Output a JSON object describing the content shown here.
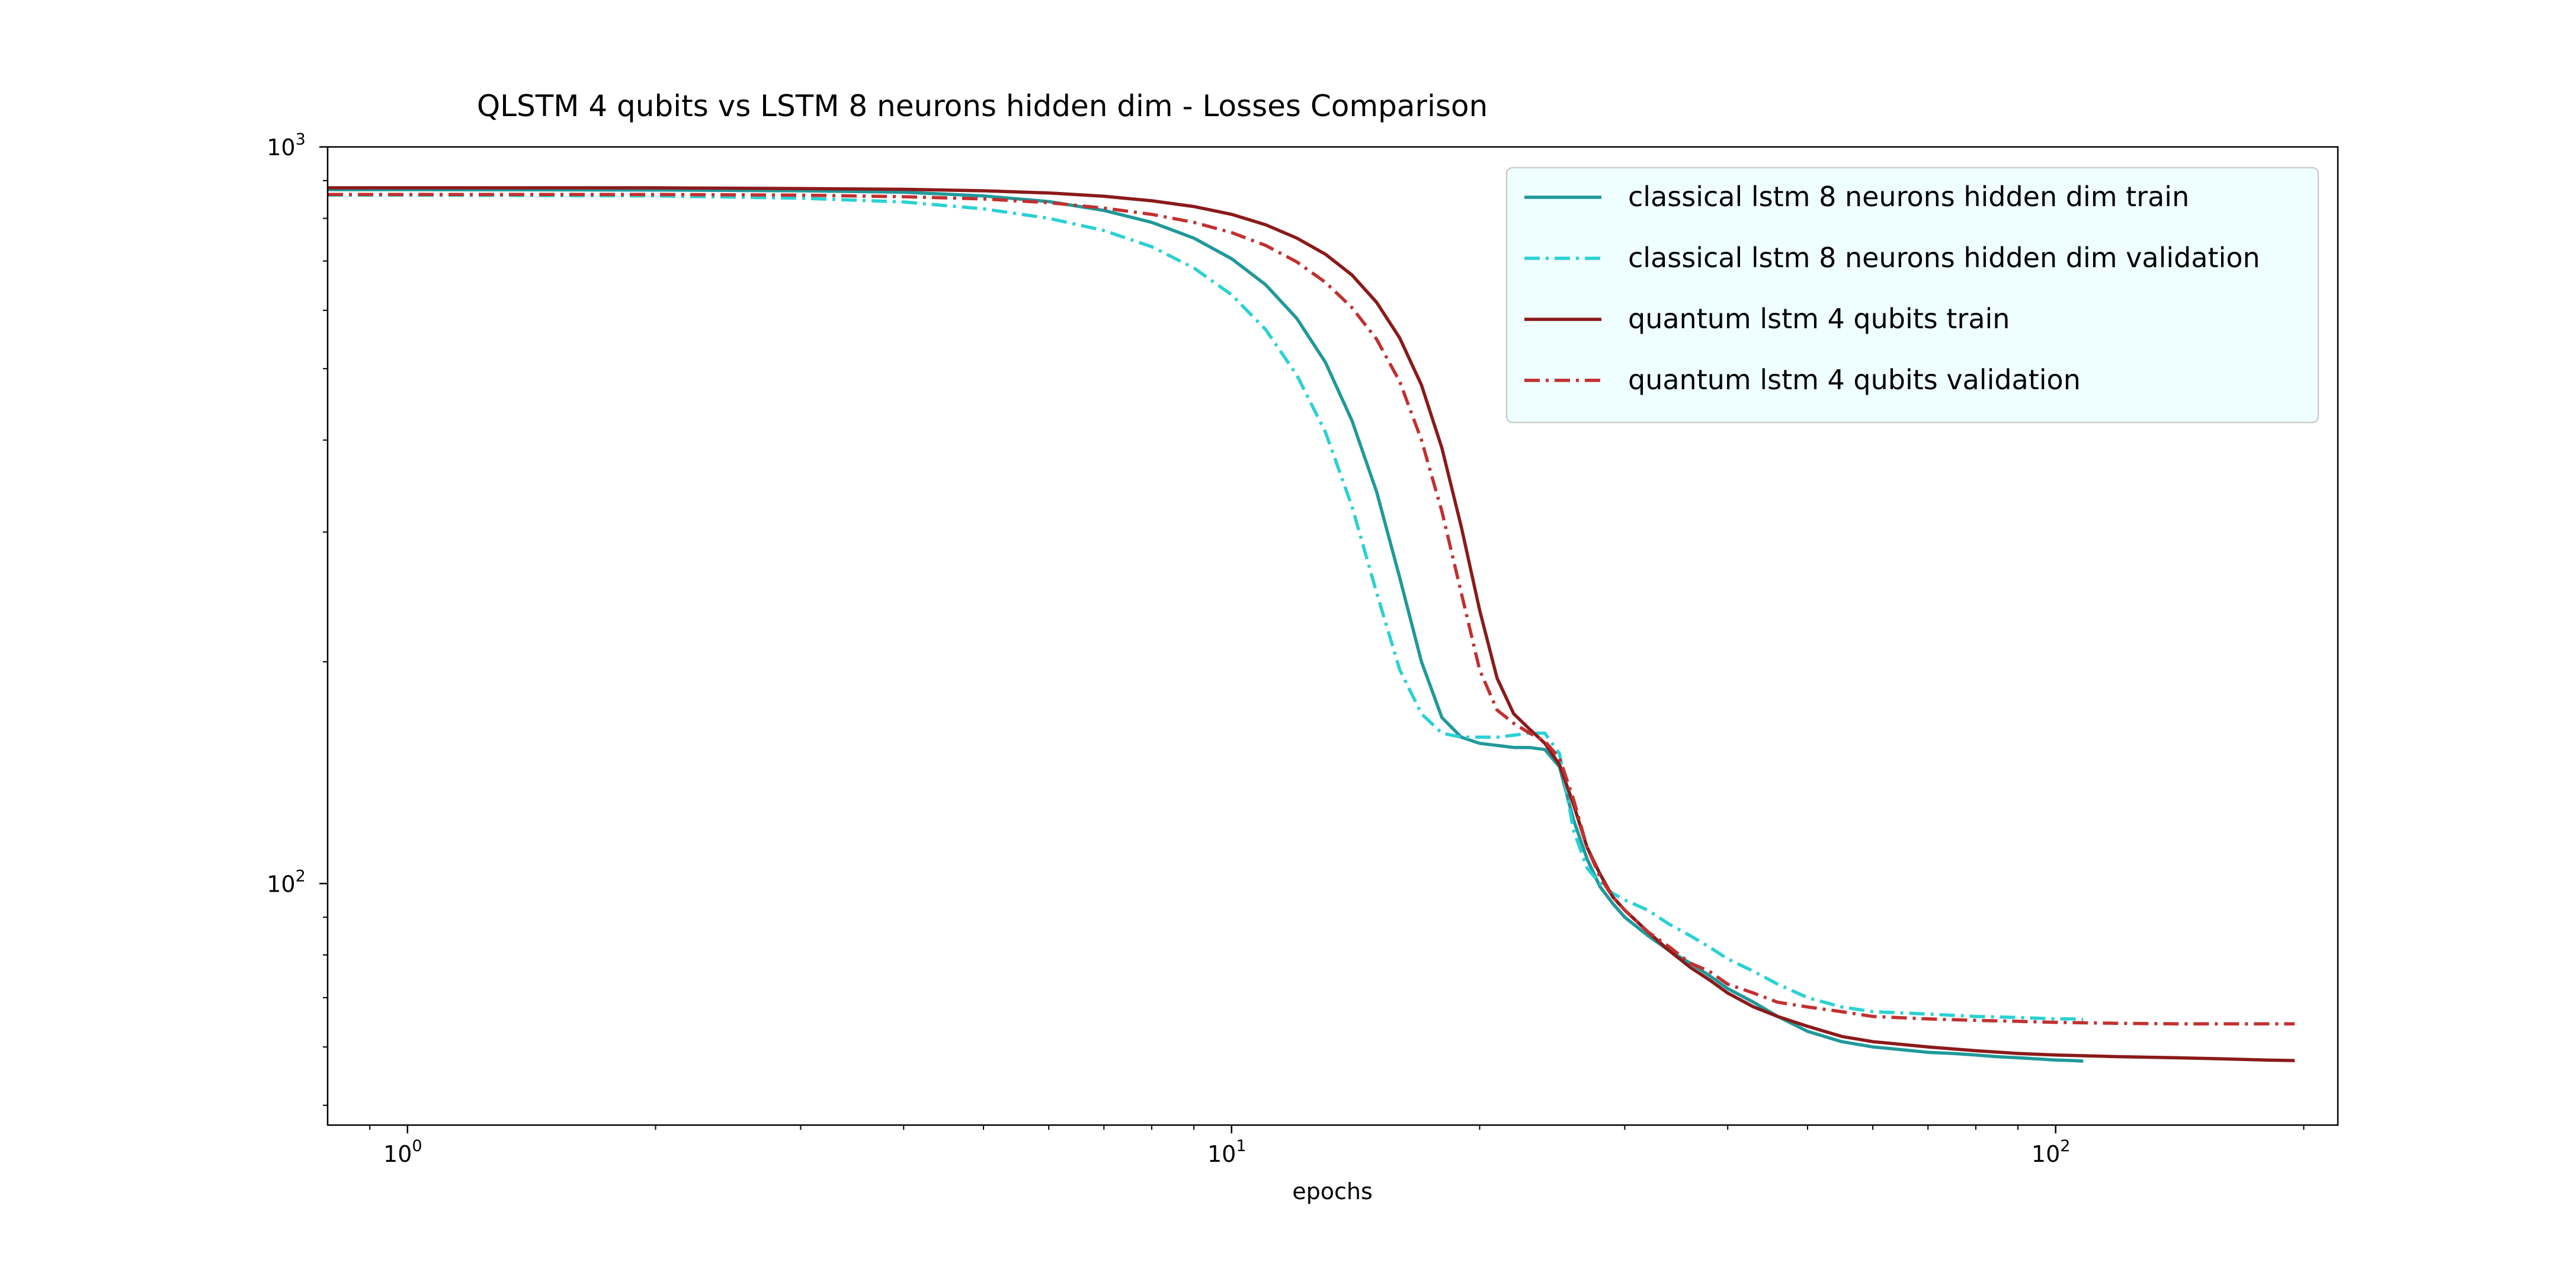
{
  "chart_data": {
    "type": "line",
    "title": "QLSTM 4 qubits vs LSTM 8 neurons hidden dim - Losses Comparison",
    "xlabel": "epochs",
    "ylabel": "",
    "xscale": "log",
    "yscale": "log",
    "xlim": [
      0.8,
      220
    ],
    "ylim": [
      47,
      1000
    ],
    "xticks": [
      {
        "value": 1,
        "base": "10",
        "exp": "0"
      },
      {
        "value": 10,
        "base": "10",
        "exp": "1"
      },
      {
        "value": 100,
        "base": "10",
        "exp": "2"
      }
    ],
    "yticks": [
      {
        "value": 100,
        "base": "10",
        "exp": "2"
      },
      {
        "value": 1000,
        "base": "10",
        "exp": "3"
      }
    ],
    "grid": false,
    "legend_position": "top-right",
    "legend_background": "#effefe",
    "series": [
      {
        "name": "classical lstm 8 neurons hidden dim train",
        "color": "#20999a",
        "style": "solid",
        "x": [
          0.8,
          1,
          2,
          3,
          4,
          5,
          6,
          7,
          8,
          9,
          10,
          11,
          12,
          13,
          14,
          15,
          16,
          17,
          18,
          19,
          20,
          21,
          22,
          23,
          24,
          25,
          26,
          27,
          28,
          29,
          30,
          32,
          34,
          36,
          38,
          40,
          43,
          46,
          50,
          55,
          60,
          65,
          70,
          75,
          80,
          85,
          90,
          95,
          100,
          105,
          108
        ],
        "y": [
          875,
          875,
          874,
          872,
          868,
          858,
          843,
          820,
          790,
          752,
          705,
          650,
          585,
          510,
          425,
          340,
          260,
          200,
          168,
          158,
          155,
          154,
          153,
          153,
          152,
          144,
          122,
          108,
          99,
          94,
          90,
          85,
          81,
          78,
          75,
          72,
          69,
          66,
          63,
          61,
          60,
          59.5,
          59,
          58.8,
          58.5,
          58.2,
          58,
          57.8,
          57.6,
          57.5,
          57.4
        ]
      },
      {
        "name": "classical lstm 8 neurons hidden dim validation",
        "color": "#2ad1d4",
        "style": "dashdot",
        "x": [
          0.8,
          1,
          2,
          3,
          4,
          5,
          6,
          7,
          8,
          9,
          10,
          11,
          12,
          13,
          14,
          15,
          16,
          17,
          18,
          19,
          20,
          21,
          22,
          23,
          24,
          25,
          26,
          27,
          28,
          29,
          30,
          32,
          34,
          36,
          38,
          40,
          43,
          46,
          50,
          55,
          60,
          70,
          80,
          90,
          100,
          105,
          108
        ],
        "y": [
          860,
          860,
          858,
          852,
          842,
          824,
          800,
          770,
          732,
          685,
          630,
          565,
          490,
          410,
          325,
          248,
          195,
          170,
          160,
          158,
          158,
          158,
          159,
          160,
          160,
          150,
          118,
          105,
          100,
          97,
          95,
          92,
          88,
          85,
          82,
          79,
          76,
          73,
          70,
          68,
          67,
          66.5,
          66,
          65.8,
          65.5,
          65.5,
          65.4
        ]
      },
      {
        "name": "quantum lstm 4 qubits train",
        "color": "#8b1a1a",
        "style": "solid",
        "x": [
          0.8,
          1,
          2,
          3,
          4,
          5,
          6,
          7,
          8,
          9,
          10,
          11,
          12,
          13,
          14,
          15,
          16,
          17,
          18,
          19,
          20,
          21,
          22,
          23,
          24,
          25,
          26,
          27,
          28,
          29,
          30,
          32,
          34,
          36,
          38,
          40,
          43,
          46,
          50,
          55,
          60,
          70,
          80,
          90,
          100,
          120,
          140,
          160,
          180,
          195
        ],
        "y": [
          880,
          880,
          880,
          878,
          876,
          872,
          866,
          857,
          845,
          830,
          810,
          784,
          752,
          715,
          670,
          615,
          550,
          475,
          390,
          305,
          235,
          190,
          170,
          162,
          155,
          145,
          128,
          112,
          103,
          96,
          92,
          86,
          81,
          77,
          74,
          71,
          68,
          66,
          64,
          62,
          61,
          60,
          59.3,
          58.8,
          58.5,
          58.2,
          58,
          57.8,
          57.6,
          57.5
        ]
      },
      {
        "name": "quantum lstm 4 qubits validation",
        "color": "#c23030",
        "style": "dashdot",
        "x": [
          0.8,
          1,
          2,
          3,
          4,
          5,
          6,
          7,
          8,
          9,
          10,
          11,
          12,
          13,
          14,
          15,
          16,
          17,
          18,
          19,
          20,
          21,
          22,
          23,
          24,
          25,
          26,
          27,
          28,
          29,
          30,
          32,
          34,
          36,
          38,
          40,
          43,
          46,
          50,
          55,
          60,
          70,
          80,
          90,
          100,
          120,
          140,
          160,
          180,
          195
        ],
        "y": [
          862,
          862,
          862,
          860,
          856,
          850,
          840,
          826,
          810,
          790,
          765,
          735,
          698,
          655,
          605,
          548,
          480,
          400,
          320,
          248,
          195,
          172,
          165,
          160,
          156,
          148,
          130,
          112,
          102,
          96,
          92,
          86,
          82,
          78,
          76,
          73,
          71,
          69,
          68,
          67,
          66,
          65.5,
          65.2,
          65,
          64.8,
          64.6,
          64.5,
          64.5,
          64.5,
          64.5
        ]
      }
    ]
  }
}
